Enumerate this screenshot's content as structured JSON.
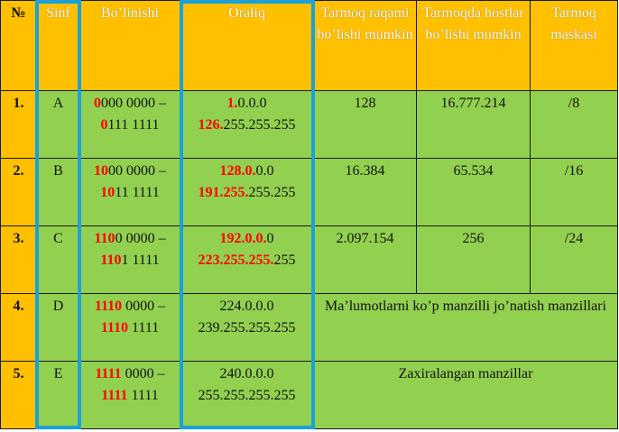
{
  "headers": {
    "num": "№",
    "sinf": "Sinf",
    "bolinishi": "Bo’linishi",
    "oraliq": "Oraliq",
    "tarmoq_raqami": "Tarmoq raqami bo’lishi mumkin",
    "hostlar": "Tarmoqda hostlar bo’lishi mumkin",
    "maska": "Tarmoq maskasi"
  },
  "rows": [
    {
      "num": "1.",
      "sinf": "A",
      "bol1_red": "0",
      "bol1_rest": "000 0000 –",
      "bol2_red": "0",
      "bol2_rest": "111 1111",
      "or1_red": "1.",
      "or1_rest": "0.0.0",
      "or2_red": "126.",
      "or2_rest": "255.255.255",
      "networks": "128",
      "hosts": "16.777.214",
      "mask": "/8"
    },
    {
      "num": "2.",
      "sinf": "B",
      "bol1_red": "10",
      "bol1_rest": "00 0000 –",
      "bol2_red": "10",
      "bol2_rest": "11 1111",
      "or1_red": "128.0.",
      "or1_rest": "0.0",
      "or2_red": "191.255.",
      "or2_rest": "255.255",
      "networks": "16.384",
      "hosts": "65.534",
      "mask": "/16"
    },
    {
      "num": "3.",
      "sinf": "C",
      "bol1_red": "110",
      "bol1_rest": "0 0000 –",
      "bol2_red": "110",
      "bol2_rest": "1 1111",
      "or1_red": "192.0.0.",
      "or1_rest": "0",
      "or2_red": "223.255.255.",
      "or2_rest": "255",
      "networks": "2.097.154",
      "hosts": "256",
      "mask": "/24"
    },
    {
      "num": "4.",
      "sinf": "D",
      "bol1_red": "1110",
      "bol1_rest": " 0000 –",
      "bol2_red": "1110",
      "bol2_rest": " 1111",
      "or1": "224.0.0.0",
      "or2": "239.255.255.255",
      "merged": "Ma’lumotlarni ko’p manzilli jo’natish manzillari"
    },
    {
      "num": "5.",
      "sinf": "E",
      "bol1_red": "1111",
      "bol1_rest": " 0000 –",
      "bol2_red": "1111",
      "bol2_rest": " 1111",
      "or1": "240.0.0.0",
      "or2": "255.255.255.255",
      "merged": "Zaxiralangan manzillar"
    }
  ],
  "colors": {
    "header_bg": "#ffc000",
    "cell_bg": "#92d050",
    "highlight_red": "#ff0000",
    "column_outline": "#1aa1d8"
  }
}
